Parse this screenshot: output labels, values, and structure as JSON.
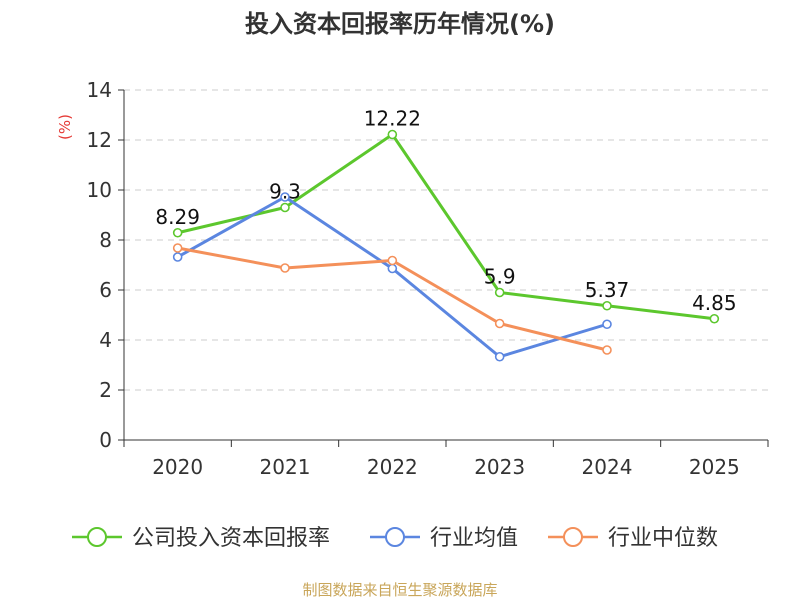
{
  "chart_data": {
    "type": "line",
    "title": "投入资本回报率历年情况(%)",
    "ylabel": "(%)",
    "xlabel": "",
    "categories": [
      "2020",
      "2021",
      "2022",
      "2023",
      "2024",
      "2025"
    ],
    "ylim": [
      0,
      14
    ],
    "yticks": [
      0,
      2,
      4,
      6,
      8,
      10,
      12,
      14
    ],
    "grid": true,
    "legend_position": "bottom",
    "series": [
      {
        "name": "公司投入资本回报率",
        "color": "#5cc72d",
        "values": [
          8.29,
          9.3,
          12.22,
          5.9,
          5.37,
          4.85
        ],
        "labels": [
          "8.29",
          "9.3",
          "12.22",
          "5.9",
          "5.37",
          "4.85"
        ]
      },
      {
        "name": "行业均值",
        "color": "#5b86e0",
        "values": [
          7.32,
          9.72,
          6.86,
          3.33,
          4.63,
          null
        ]
      },
      {
        "name": "行业中位数",
        "color": "#f4905a",
        "values": [
          7.68,
          6.88,
          7.18,
          4.66,
          3.6,
          null
        ]
      }
    ],
    "source": "制图数据来自恒生聚源数据库"
  },
  "colors": {
    "title": "#333333",
    "axis": "#333333",
    "ylabel": "#e53935",
    "grid": "#cccccc",
    "source": "#c9a65a"
  }
}
